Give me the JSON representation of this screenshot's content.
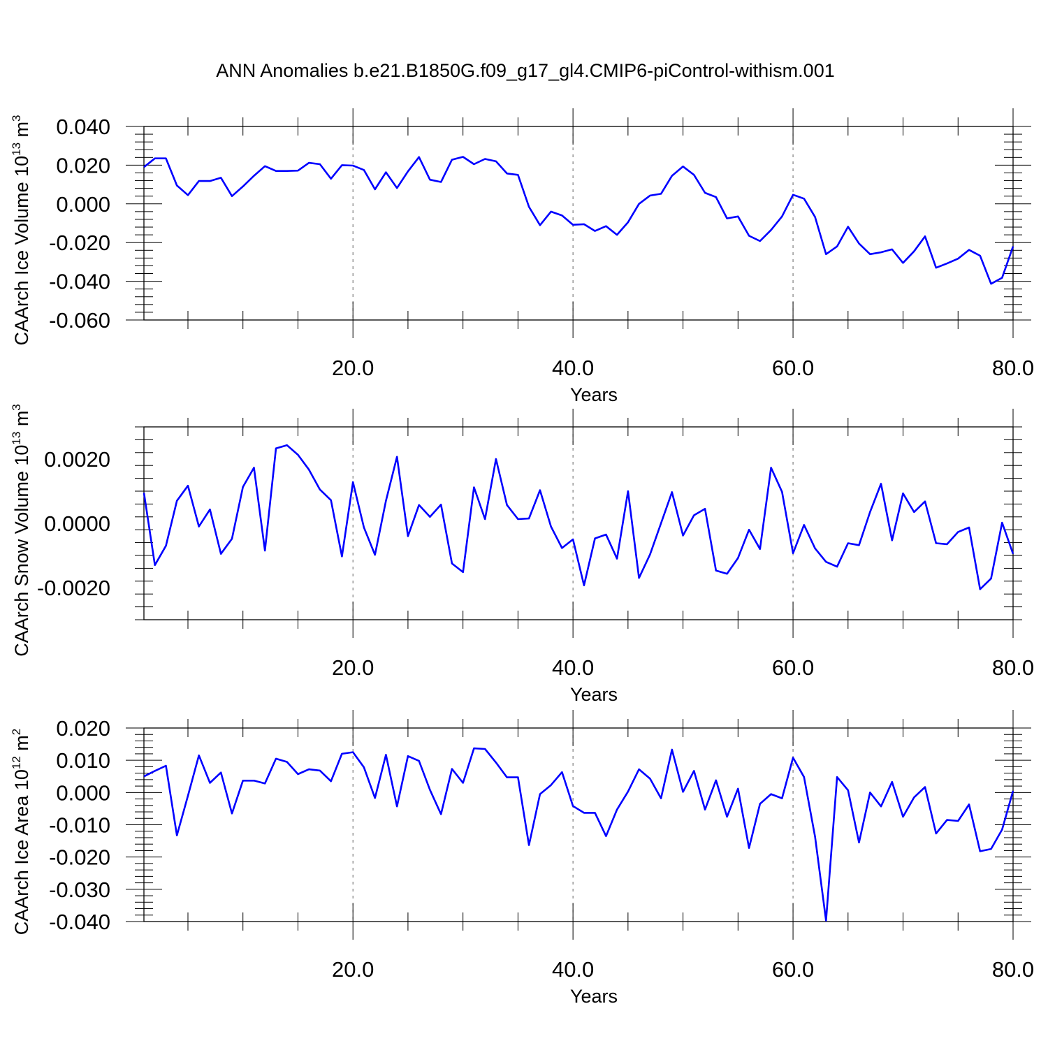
{
  "title": "ANN Anomalies b.e21.B1850G.f09_g17_gl4.CMIP6-piControl-withism.001",
  "colors": {
    "line": "#0000ff",
    "axis": "#000000"
  },
  "chart_data": [
    {
      "type": "line",
      "xlabel": "Years",
      "ylabel": "CAArch Ice Volume 10",
      "ylabel_exp": "13",
      "ylabel_unit": " m",
      "ylabel_unit_exp": "3",
      "xlim": [
        1,
        80
      ],
      "ylim": [
        -0.06,
        0.04
      ],
      "grid_x": [
        20,
        40,
        60
      ],
      "x_ticks": [
        "20.0",
        "40.0",
        "60.0",
        "80.0"
      ],
      "y_ticks": [
        "0.040",
        "0.020",
        "0.000",
        "-0.020",
        "-0.040",
        "-0.060"
      ],
      "x": [
        1,
        2,
        3,
        4,
        5,
        6,
        7,
        8,
        9,
        10,
        11,
        12,
        13,
        14,
        15,
        16,
        17,
        18,
        19,
        20,
        21,
        22,
        23,
        24,
        25,
        26,
        27,
        28,
        29,
        30,
        31,
        32,
        33,
        34,
        35,
        36,
        37,
        38,
        39,
        40,
        41,
        42,
        43,
        44,
        45,
        46,
        47,
        48,
        49,
        50,
        51,
        52,
        53,
        54,
        55,
        56,
        57,
        58,
        59,
        60,
        61,
        62,
        63,
        64,
        65,
        66,
        67,
        68,
        69,
        70,
        71,
        72,
        73,
        74,
        75,
        76,
        77,
        78,
        79,
        80
      ],
      "values": [
        0.019,
        0.0235,
        0.0235,
        0.0095,
        0.0045,
        0.0118,
        0.0118,
        0.0135,
        0.004,
        0.009,
        0.0145,
        0.0195,
        0.017,
        0.017,
        0.0172,
        0.0212,
        0.0205,
        0.013,
        0.02,
        0.0198,
        0.0175,
        0.0075,
        0.0163,
        0.0082,
        0.0168,
        0.0242,
        0.0125,
        0.0113,
        0.0228,
        0.0243,
        0.0205,
        0.0232,
        0.022,
        0.0157,
        0.015,
        -0.0015,
        -0.011,
        -0.004,
        -0.006,
        -0.0108,
        -0.0105,
        -0.014,
        -0.0115,
        -0.016,
        -0.0095,
        0.0,
        0.0043,
        0.0052,
        0.0145,
        0.0193,
        0.015,
        0.0057,
        0.0035,
        -0.0075,
        -0.0065,
        -0.0165,
        -0.0192,
        -0.0135,
        -0.0065,
        0.0047,
        0.0027,
        -0.0068,
        -0.026,
        -0.022,
        -0.0118,
        -0.0205,
        -0.026,
        -0.025,
        -0.0235,
        -0.0305,
        -0.0245,
        -0.0168,
        -0.033,
        -0.0308,
        -0.0283,
        -0.0238,
        -0.0268,
        -0.0413,
        -0.0382,
        -0.022
      ]
    },
    {
      "type": "line",
      "xlabel": "Years",
      "ylabel": "CAArch Snow Volume 10",
      "ylabel_exp": "13",
      "ylabel_unit": " m",
      "ylabel_unit_exp": "3",
      "xlim": [
        1,
        80
      ],
      "ylim": [
        -0.003,
        0.003
      ],
      "grid_x": [
        20,
        40,
        60
      ],
      "x_ticks": [
        "20.0",
        "40.0",
        "60.0",
        "80.0"
      ],
      "y_ticks": [
        "0.0020",
        "0.0000",
        "-0.0020"
      ],
      "x": [
        1,
        2,
        3,
        4,
        5,
        6,
        7,
        8,
        9,
        10,
        11,
        12,
        13,
        14,
        15,
        16,
        17,
        18,
        19,
        20,
        21,
        22,
        23,
        24,
        25,
        26,
        27,
        28,
        29,
        30,
        31,
        32,
        33,
        34,
        35,
        36,
        37,
        38,
        39,
        40,
        41,
        42,
        43,
        44,
        45,
        46,
        47,
        48,
        49,
        50,
        51,
        52,
        53,
        54,
        55,
        56,
        57,
        58,
        59,
        60,
        61,
        62,
        63,
        64,
        65,
        66,
        67,
        68,
        69,
        70,
        71,
        72,
        73,
        74,
        75,
        76,
        77,
        78,
        79,
        80
      ],
      "values": [
        0.00095,
        -0.0013,
        -0.0007,
        0.0007,
        0.00117,
        -0.0001,
        0.00043,
        -0.00095,
        -0.00048,
        0.00113,
        0.00173,
        -0.00085,
        0.00233,
        0.00243,
        0.00213,
        0.00167,
        0.00105,
        0.00072,
        -0.00103,
        0.00128,
        -0.00013,
        -0.00098,
        0.0007,
        0.00207,
        -0.0004,
        0.00057,
        0.0002,
        0.00058,
        -0.00125,
        -0.00152,
        0.00112,
        0.00013,
        0.002,
        0.00057,
        0.00013,
        0.00015,
        0.00103,
        -0.0001,
        -0.00077,
        -0.0005,
        -0.00193,
        -0.00047,
        -0.00035,
        -0.0011,
        0.001,
        -0.0017,
        -0.00097,
        0.0,
        0.00097,
        -0.00038,
        0.00025,
        0.00045,
        -0.00147,
        -0.00157,
        -0.00108,
        -0.0002,
        -0.0008,
        0.00173,
        0.00098,
        -0.00093,
        -5e-05,
        -0.00078,
        -0.0012,
        -0.00135,
        -0.00062,
        -0.00068,
        0.00035,
        0.00123,
        -0.00053,
        0.00093,
        0.00035,
        0.00068,
        -0.00062,
        -0.00065,
        -0.00027,
        -0.00013,
        -0.00205,
        -0.00172,
        2e-05,
        -0.00095
      ]
    },
    {
      "type": "line",
      "xlabel": "Years",
      "ylabel": "CAArch Ice Area 10",
      "ylabel_exp": "12",
      "ylabel_unit": " m",
      "ylabel_unit_exp": "2",
      "xlim": [
        1,
        80
      ],
      "ylim": [
        -0.04,
        0.02
      ],
      "grid_x": [
        20,
        40,
        60
      ],
      "x_ticks": [
        "20.0",
        "40.0",
        "60.0",
        "80.0"
      ],
      "y_ticks": [
        "0.020",
        "0.010",
        "0.000",
        "-0.010",
        "-0.020",
        "-0.030",
        "-0.040"
      ],
      "x": [
        1,
        2,
        3,
        4,
        5,
        6,
        7,
        8,
        9,
        10,
        11,
        12,
        13,
        14,
        15,
        16,
        17,
        18,
        19,
        20,
        21,
        22,
        23,
        24,
        25,
        26,
        27,
        28,
        29,
        30,
        31,
        32,
        33,
        34,
        35,
        36,
        37,
        38,
        39,
        40,
        41,
        42,
        43,
        44,
        45,
        46,
        47,
        48,
        49,
        50,
        51,
        52,
        53,
        54,
        55,
        56,
        57,
        58,
        59,
        60,
        61,
        62,
        63,
        64,
        65,
        66,
        67,
        68,
        69,
        70,
        71,
        72,
        73,
        74,
        75,
        76,
        77,
        78,
        79,
        80
      ],
      "values": [
        0.005,
        0.0067,
        0.0083,
        -0.0133,
        -0.001,
        0.0115,
        0.003,
        0.0062,
        -0.0065,
        0.0037,
        0.0037,
        0.0028,
        0.0105,
        0.0095,
        0.0057,
        0.0072,
        0.0068,
        0.0035,
        0.012,
        0.0125,
        0.0078,
        -0.0017,
        0.0117,
        -0.0043,
        0.0113,
        0.0098,
        0.0008,
        -0.0067,
        0.0073,
        0.003,
        0.0137,
        0.0135,
        0.0093,
        0.0047,
        0.0047,
        -0.0163,
        -0.0005,
        0.0023,
        0.0063,
        -0.0042,
        -0.0063,
        -0.0063,
        -0.0135,
        -0.0053,
        0.0003,
        0.0072,
        0.0043,
        -0.0018,
        0.0133,
        0.0002,
        0.0067,
        -0.0053,
        0.0038,
        -0.0075,
        0.0012,
        -0.0172,
        -0.0035,
        -0.0005,
        -0.0018,
        0.0108,
        0.0048,
        -0.0137,
        -0.0397,
        0.0048,
        0.0007,
        -0.0155,
        0.0,
        -0.0043,
        0.0033,
        -0.0075,
        -0.0015,
        0.0017,
        -0.0127,
        -0.0085,
        -0.0088,
        -0.0037,
        -0.0182,
        -0.0175,
        -0.0115,
        0.0005
      ]
    }
  ]
}
